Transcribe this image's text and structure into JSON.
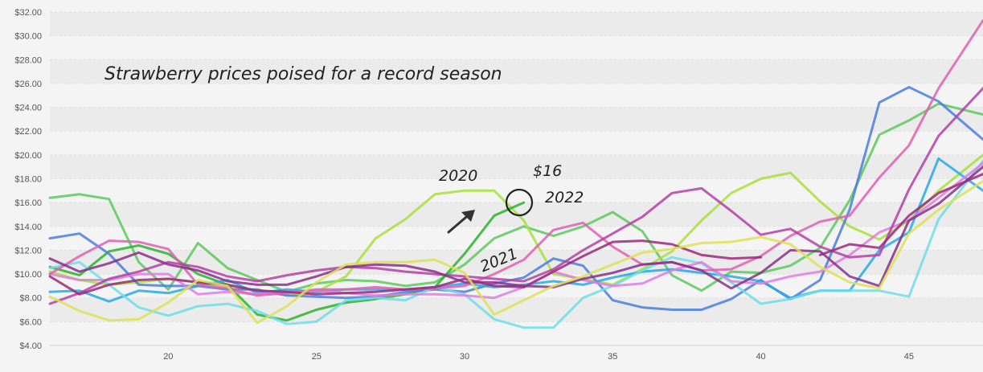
{
  "chart_data": {
    "type": "line",
    "title": "Strawberry prices poised for a record season",
    "xlabel": "",
    "ylabel": "",
    "ylim": [
      4,
      32
    ],
    "xlim": [
      16,
      47.5
    ],
    "x_ticks": [
      20,
      25,
      30,
      35,
      40,
      45
    ],
    "y_ticks": [
      {
        "v": 4,
        "label": "$4.00"
      },
      {
        "v": 6,
        "label": "$6.00"
      },
      {
        "v": 8,
        "label": "$8.00"
      },
      {
        "v": 10,
        "label": "$10.00"
      },
      {
        "v": 12,
        "label": "$12.00"
      },
      {
        "v": 14,
        "label": "$14.00"
      },
      {
        "v": 16,
        "label": "$16.00"
      },
      {
        "v": 18,
        "label": "$18.00"
      },
      {
        "v": 20,
        "label": "$20.00"
      },
      {
        "v": 22,
        "label": "$22.00"
      },
      {
        "v": 24,
        "label": "$24.00"
      },
      {
        "v": 26,
        "label": "$26.00"
      },
      {
        "v": 28,
        "label": "$28.00"
      },
      {
        "v": 30,
        "label": "$30.00"
      },
      {
        "v": 32,
        "label": "$32.00"
      }
    ],
    "grid": true,
    "legend": "none",
    "annotations": {
      "label_2020": "2020",
      "label_2021": "2021",
      "label_2022": "2022",
      "label_price": "$16",
      "price_value": 16,
      "price_week": 32
    },
    "series": [
      {
        "color": "#5cc95c",
        "x": [
          16,
          17,
          18,
          19,
          20,
          21,
          22,
          23,
          24,
          25,
          26,
          27,
          28,
          29,
          30,
          31,
          32,
          33,
          34,
          35,
          36,
          37,
          38,
          39,
          40,
          41,
          42,
          43,
          44,
          45,
          46,
          47.5
        ],
        "values": [
          16.4,
          16.7,
          16.3,
          11,
          8.7,
          12.6,
          10.5,
          9.5,
          8.5,
          9.2,
          9.5,
          9.4,
          9,
          9.3,
          10.8,
          13,
          14,
          13.2,
          14,
          15.2,
          13.6,
          9.9,
          8.6,
          10.2,
          10.1,
          10.7,
          12.2,
          16.2,
          21.7,
          22.9,
          24.3,
          23.4
        ]
      },
      {
        "color": "#a7e03a",
        "x": [
          16,
          17,
          18,
          19,
          20,
          21,
          22,
          23,
          24,
          25,
          26,
          27,
          28,
          29,
          30,
          31,
          32,
          33,
          34,
          35,
          36,
          37,
          38,
          39,
          40,
          41,
          42,
          43,
          44,
          45,
          46,
          47.5
        ],
        "values": [
          10.2,
          9.5,
          9.1,
          9.3,
          9.6,
          9.3,
          9,
          8.6,
          8.2,
          8.5,
          9.8,
          13,
          14.6,
          16.7,
          17,
          17,
          14.5,
          10,
          9.6,
          9.1,
          10.4,
          11.9,
          14.5,
          16.8,
          18,
          18.5,
          16.1,
          14,
          12.9,
          14.5,
          17,
          20
        ]
      },
      {
        "color": "#2ab52a",
        "x": [
          16,
          17,
          18,
          19,
          20,
          21,
          22,
          23,
          24,
          25,
          26,
          27,
          28,
          29,
          30,
          31,
          32
        ],
        "values": [
          10.6,
          9.9,
          11.9,
          12.4,
          11.7,
          10,
          9.1,
          6.6,
          6.1,
          7,
          7.6,
          7.9,
          8.3,
          8.9,
          11.7,
          14.9,
          16
        ]
      },
      {
        "color": "#4a7ee0",
        "x": [
          16,
          17,
          18,
          19,
          20,
          21,
          22,
          23,
          24,
          25,
          26,
          27,
          28,
          29,
          30,
          31,
          32,
          33,
          34,
          35,
          36,
          37,
          38,
          39,
          40,
          41,
          42,
          43,
          44,
          45,
          46,
          47.5
        ],
        "values": [
          13,
          13.4,
          11.7,
          9.1,
          9,
          9,
          8.7,
          8.7,
          8.2,
          8.1,
          8,
          8.1,
          8.5,
          8.7,
          8.5,
          9.2,
          9.7,
          11.3,
          10.7,
          7.8,
          7.2,
          7,
          7,
          7.9,
          9.5,
          7.9,
          9.5,
          15.4,
          24.4,
          25.7,
          24.5,
          21.3
        ]
      },
      {
        "color": "#26a9e8",
        "x": [
          16,
          17,
          18,
          19,
          20,
          21,
          22,
          23,
          24,
          25,
          26,
          27,
          28,
          29,
          30,
          31,
          32,
          33,
          34,
          35,
          36,
          37,
          38,
          39,
          40,
          41,
          42,
          43,
          44,
          45,
          46,
          47.5
        ],
        "values": [
          8.5,
          8.6,
          7.7,
          8.6,
          8.4,
          9,
          9.5,
          8.4,
          8.7,
          8.5,
          8.7,
          8.7,
          8.7,
          8.9,
          9.2,
          8.9,
          9.1,
          9.4,
          9.1,
          9.7,
          10.2,
          10.4,
          10.1,
          9.8,
          9.4,
          8,
          8.6,
          8.6,
          12,
          13.5,
          19.7,
          17
        ]
      },
      {
        "color": "#6fdde8",
        "x": [
          16,
          17,
          18,
          19,
          20,
          21,
          22,
          23,
          24,
          25,
          26,
          27,
          28,
          29,
          30,
          31,
          32,
          33,
          34,
          35,
          36,
          37,
          38,
          39,
          40,
          41,
          42,
          43,
          44,
          45,
          46,
          47.5
        ],
        "values": [
          10.5,
          11,
          9.1,
          7.2,
          6.5,
          7.3,
          7.5,
          6.9,
          5.8,
          6,
          7.8,
          8,
          7.8,
          8.9,
          8.3,
          6.2,
          5.5,
          5.5,
          8,
          9,
          10.3,
          11.4,
          10.9,
          9.3,
          7.5,
          7.9,
          8.6,
          8.6,
          8.6,
          8.1,
          14.6,
          19.5
        ]
      },
      {
        "color": "#e07be0",
        "x": [
          16,
          17,
          18,
          19,
          20,
          21,
          22,
          23,
          24,
          25,
          26,
          27,
          28,
          29,
          30,
          31,
          32,
          33,
          34,
          35,
          36,
          37,
          38,
          39,
          40,
          41,
          42,
          43,
          44,
          45,
          46,
          47.5
        ],
        "values": [
          10,
          9.5,
          9.5,
          10,
          10,
          8.3,
          8.5,
          8.3,
          8.5,
          8.6,
          8.4,
          8.2,
          8.3,
          8.3,
          8.2,
          8,
          8.9,
          10.2,
          9.5,
          9,
          9.2,
          10.3,
          11,
          9.4,
          9.2,
          9.8,
          10.2,
          11.6,
          13.5,
          14.5,
          16.4,
          19.3
        ]
      },
      {
        "color": "#e060b0",
        "x": [
          16,
          17,
          18,
          19,
          20,
          21,
          22,
          23,
          24,
          25,
          26,
          27,
          28,
          29,
          30,
          31,
          32,
          33,
          34,
          35,
          36,
          37,
          38,
          39,
          40,
          41,
          42,
          43,
          44,
          45,
          46,
          47.5
        ],
        "values": [
          10,
          11.5,
          12.8,
          12.7,
          12.1,
          9.1,
          8.8,
          8.2,
          8.4,
          8.7,
          8.7,
          8.9,
          8.7,
          8.8,
          9,
          10,
          11.2,
          13.7,
          14.3,
          12.3,
          10.8,
          11,
          10.3,
          10.4,
          11.5,
          13.2,
          14.4,
          14.9,
          18.1,
          20.8,
          25.6,
          31.3
        ]
      },
      {
        "color": "#b53fa6",
        "x": [
          16,
          17,
          18,
          19,
          20,
          21,
          22,
          23,
          24,
          25,
          26,
          27,
          28,
          29,
          30,
          31,
          32,
          33,
          34,
          35,
          36,
          37,
          38,
          39,
          40,
          41,
          42,
          43,
          44,
          45,
          46,
          47.5
        ],
        "values": [
          7.5,
          8.4,
          9.6,
          10.2,
          11,
          10.6,
          9.8,
          9.4,
          9.9,
          10.3,
          10.6,
          10.5,
          10.2,
          10,
          9.8,
          9.6,
          9.4,
          10.4,
          12,
          13.4,
          14.8,
          16.8,
          17.2,
          15.3,
          13.3,
          13.8,
          12.3,
          11.4,
          11.6,
          17.1,
          21.6,
          25.6
        ]
      },
      {
        "color": "#8a2f8a",
        "x": [
          16,
          17,
          18,
          19,
          20,
          21,
          22,
          23,
          24,
          25,
          26,
          27,
          28,
          29,
          30,
          31,
          32,
          33,
          34,
          35,
          36,
          37,
          38,
          39,
          40,
          41,
          42,
          43,
          44,
          45,
          46,
          47.5
        ],
        "values": [
          11.3,
          10.2,
          10.9,
          11.8,
          10.8,
          10.3,
          9.4,
          9.1,
          9.1,
          9.8,
          10.6,
          10.8,
          10.7,
          10.2,
          9.3,
          9.3,
          9,
          8.9,
          9.6,
          10.1,
          10.8,
          11,
          10.3,
          8.8,
          10.1,
          12,
          11.9,
          9.8,
          9,
          14.5,
          15.9,
          19
        ]
      },
      {
        "color": "#9a2a7a",
        "x": [
          16,
          17,
          18,
          19,
          20,
          21,
          22,
          23,
          24,
          25,
          26,
          27,
          28,
          29,
          30,
          31,
          32,
          33,
          34,
          35,
          36,
          37,
          38,
          39,
          40,
          41,
          42,
          43,
          44,
          45,
          46,
          47.5
        ],
        "values": [
          9.8,
          8.3,
          9.1,
          9.5,
          9.6,
          9.3,
          9.1,
          8.6,
          8.5,
          8.3,
          8.4,
          8.5,
          8.7,
          8.9,
          9.6,
          9,
          8.9,
          10.2,
          11.5,
          12.7,
          12.8,
          12.5,
          11.6,
          11.3,
          11.4,
          null,
          11.6,
          12.5,
          12.2,
          14.9,
          16.8,
          18.4
        ]
      },
      {
        "color": "#dde055",
        "x": [
          16,
          17,
          18,
          19,
          20,
          21,
          22,
          23,
          24,
          25,
          26,
          27,
          28,
          29,
          30,
          31,
          32,
          33,
          34,
          35,
          36,
          37,
          38,
          39,
          40,
          41,
          42,
          43,
          44,
          45,
          46,
          47.5
        ],
        "values": [
          8.1,
          6.9,
          6.1,
          6.2,
          7.6,
          9.5,
          9,
          5.9,
          7.3,
          9.3,
          10.8,
          11,
          11,
          11.2,
          10.1,
          6.6,
          7.8,
          9,
          9.8,
          10.8,
          11.8,
          12.1,
          12.6,
          12.7,
          13.1,
          12.5,
          10.6,
          9.3,
          8.8,
          13.4,
          15.4,
          17.8
        ]
      }
    ]
  }
}
